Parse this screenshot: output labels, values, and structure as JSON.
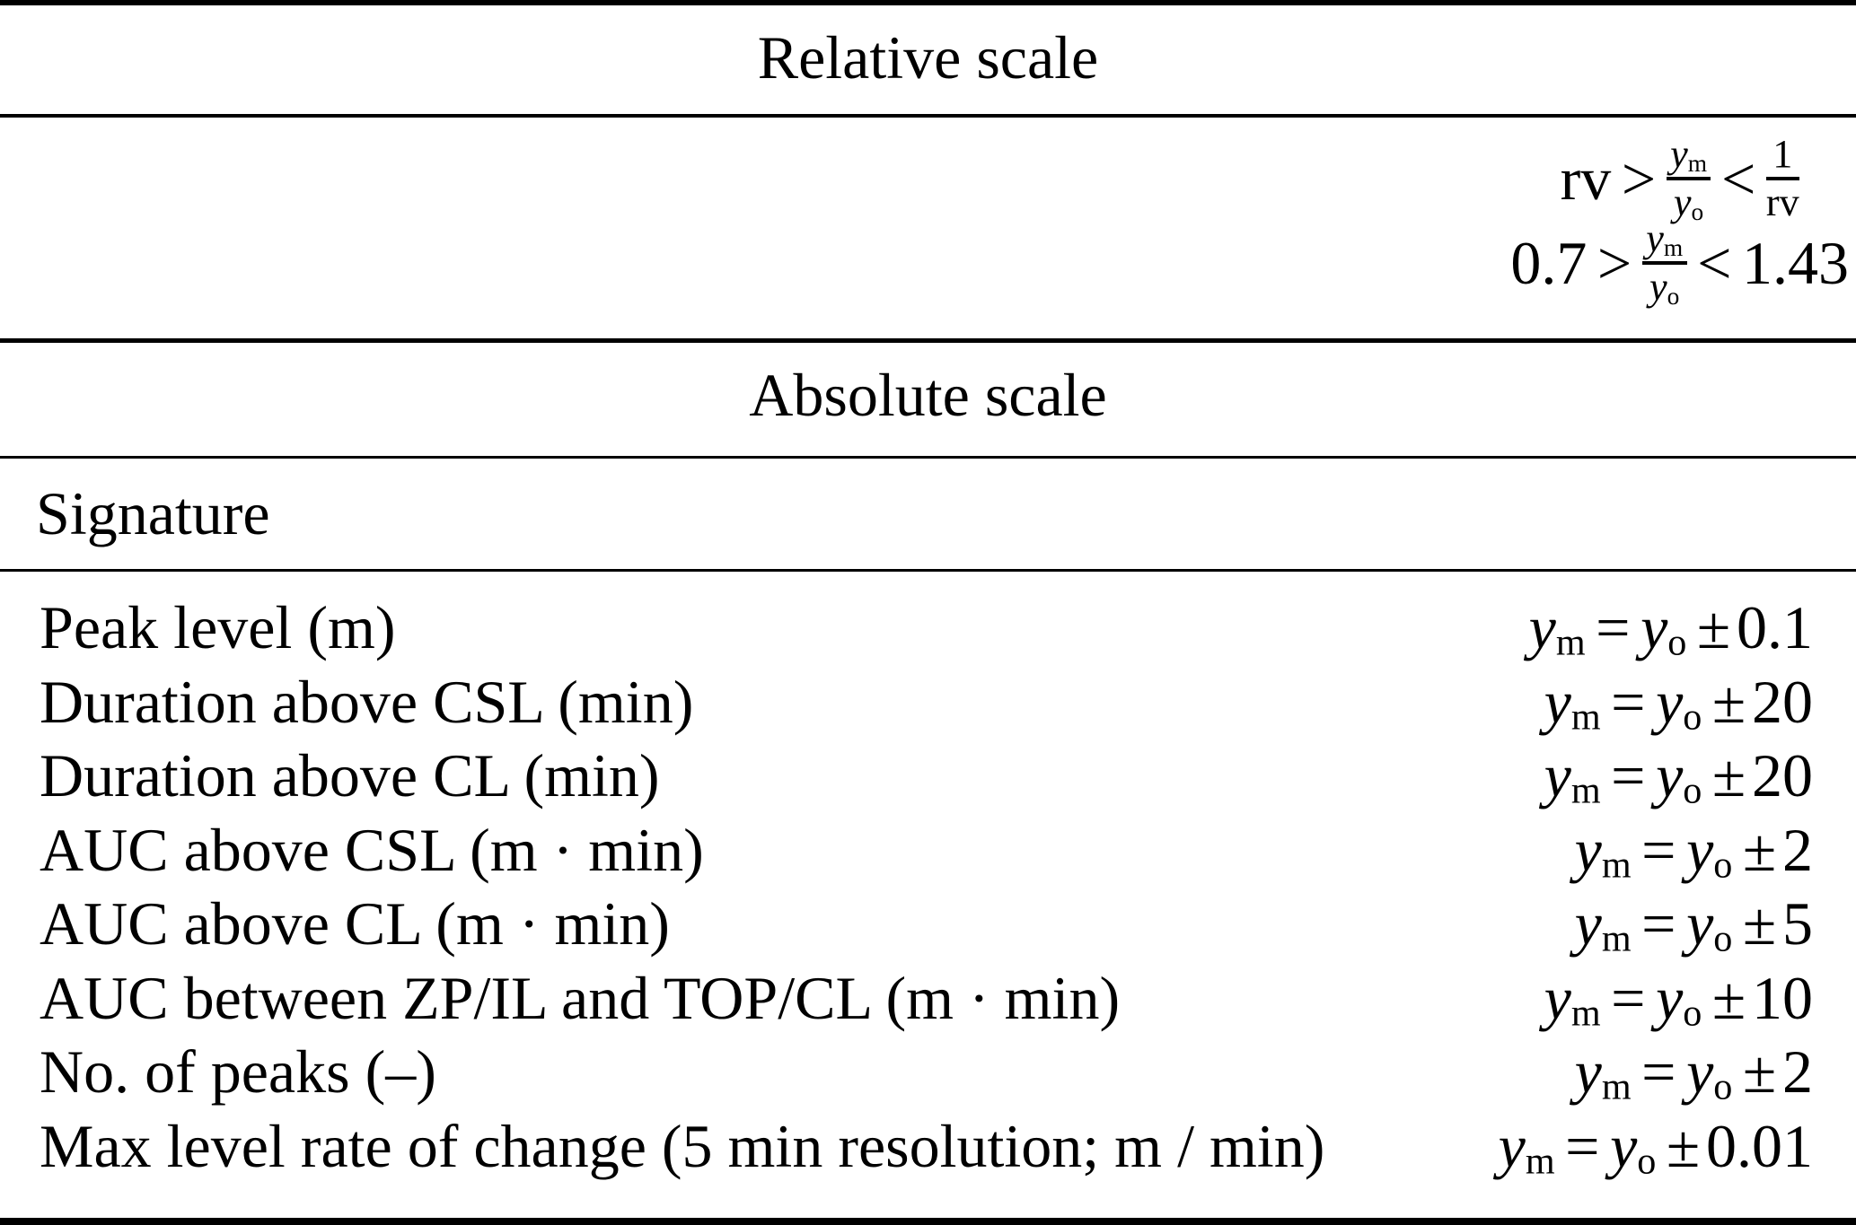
{
  "table": {
    "relative_header": "Relative scale",
    "absolute_header": "Absolute scale",
    "signature_header": "Signature",
    "math": {
      "y": "y",
      "sub_m": "m",
      "sub_o": "o",
      "eq": "=",
      "pm": "±",
      "gt": ">",
      "lt": "<",
      "rv": "rv",
      "one": "1",
      "rel_low": "0.7",
      "rel_high": "1.43"
    },
    "rows": [
      {
        "label": "Peak level (m)",
        "tolerance": "0.1"
      },
      {
        "label": "Duration above CSL (min)",
        "tolerance": "20"
      },
      {
        "label": "Duration above CL (min)",
        "tolerance": "20"
      },
      {
        "label": "AUC above CSL (m · min)",
        "tolerance": "2"
      },
      {
        "label": "AUC above CL (m · min)",
        "tolerance": "5"
      },
      {
        "label": "AUC between ZP/IL and TOP/CL (m · min)",
        "tolerance": "10"
      },
      {
        "label": "No. of peaks (–)",
        "tolerance": "2"
      },
      {
        "label": "Max level rate of change (5 min resolution; m / min)",
        "tolerance": "0.01"
      }
    ]
  }
}
